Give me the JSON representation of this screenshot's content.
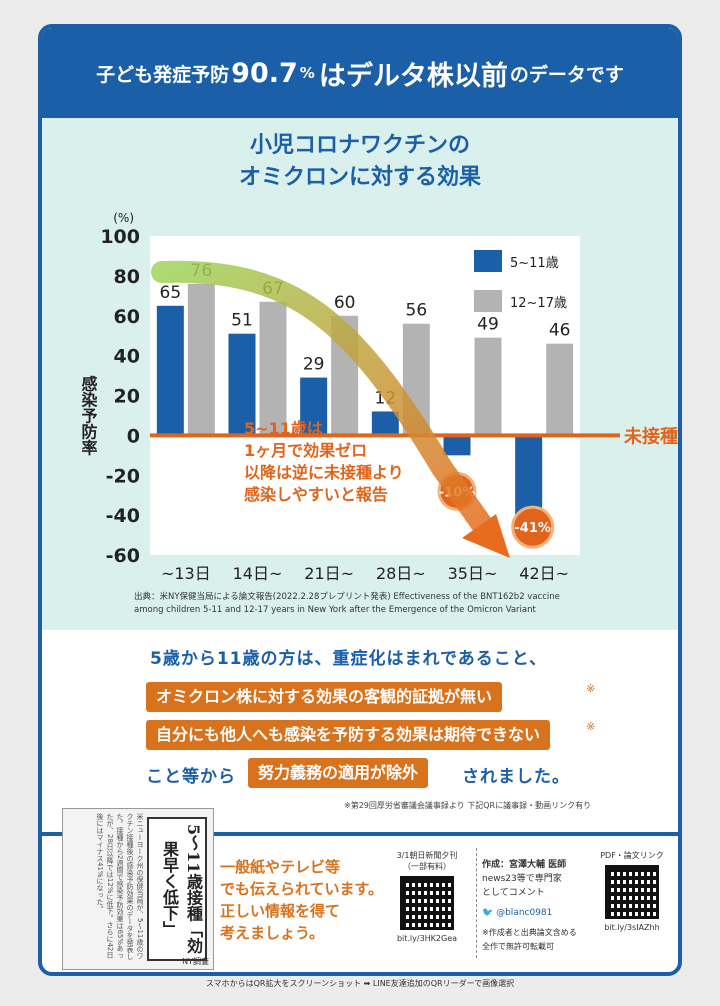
{
  "header": {
    "pre": "子ども発症予防",
    "pct_value": "90.7",
    "pct_sign": "%",
    "post": "はデルタ株以前",
    "tail": "のデータです"
  },
  "chart_data": {
    "type": "bar",
    "title_lines": [
      "小児コロナワクチンの",
      "オミクロンに対する効果"
    ],
    "ylabel": "感染予防率",
    "yunit": "(%)",
    "ylim": [
      -60,
      100
    ],
    "yticks": [
      100,
      80,
      60,
      40,
      20,
      0,
      -20,
      -40,
      -60
    ],
    "categories": [
      "~13日",
      "14日~",
      "21日~",
      "28日~",
      "35日~",
      "42日~"
    ],
    "series": [
      {
        "name": "5~11歳",
        "color": "#1a5fa8",
        "values": [
          65,
          51,
          29,
          12,
          -10,
          -41
        ]
      },
      {
        "name": "12~17歳",
        "color": "#b3b3b3",
        "values": [
          76,
          67,
          60,
          56,
          49,
          46
        ]
      }
    ],
    "data_labels": {
      "s0": [
        "65",
        "51",
        "29",
        "12",
        "-10%",
        "-41%"
      ],
      "s1": [
        "76",
        "67",
        "60",
        "56",
        "49",
        "46"
      ]
    },
    "zero_line_label": "未接種",
    "annotation": [
      "5~11歳は",
      "1ヶ月で効果ゼロ",
      "以降は逆に未接種より",
      "感染しやすいと報告"
    ],
    "legend_position": "top-right",
    "grid": false
  },
  "source": {
    "line1": "出典：米NY保健当局による論文報告(2022.2.28プレプリント発表) Effectiveness of the BNT162b2 vaccine",
    "line2": "among children 5-11 and 12-17 years in New York after the Emergence of the Omicron Variant"
  },
  "bottom": {
    "line1": "5歳から11歳の方は、重症化はまれであること、",
    "box1": "オミクロン株に対する効果の客観的証拠が無い",
    "box2": "自分にも他人へも感染を予防する効果は期待できない",
    "line3_pre": "こと等から",
    "box3": "努力義務の適用が除外",
    "line3_post": "されました。",
    "mark": "※",
    "footnote": "※第29回厚労省審議会議事録より 下記QRに議事録・動画リンク有り"
  },
  "info": {
    "clip_body": "米ニューヨーク州の保健当局が、5〜11歳のワクチン接種後の感染予防効果のデータを発表した。接種から2週間で感染予防効果は65%あったが、28日以降では12%に低下。さらに42日後にはマイナス41%になった。",
    "clip_headline": "5〜11歳接種「効果早く低下」",
    "clip_credit": "NY調査",
    "message": [
      "一般紙やテレビ等",
      "でも伝えられています。",
      "正しい情報を得て",
      "考えましょう。"
    ],
    "qr1_caption_top": "3/1朝日新聞夕刊\n（一部有料）",
    "qr1_url": "bit.ly/3HK2Gea",
    "author_title": "作成：宮澤大輔 医師",
    "author_sub": "news23等で専門家\nとしてコメント",
    "author_twitter": "@blanc0981",
    "author_note": "※作成者と出典論文含める\n全作で無許可転載可",
    "qr2_caption_top": "PDF・論文リンク",
    "qr2_url": "bit.ly/3sIAZhh",
    "twitter_icon": "bird-icon",
    "bottom_caption": "スマホからはQR拡大をスクリーンショット ➡ LINE友達追加のQRリーダーで画像選択"
  }
}
